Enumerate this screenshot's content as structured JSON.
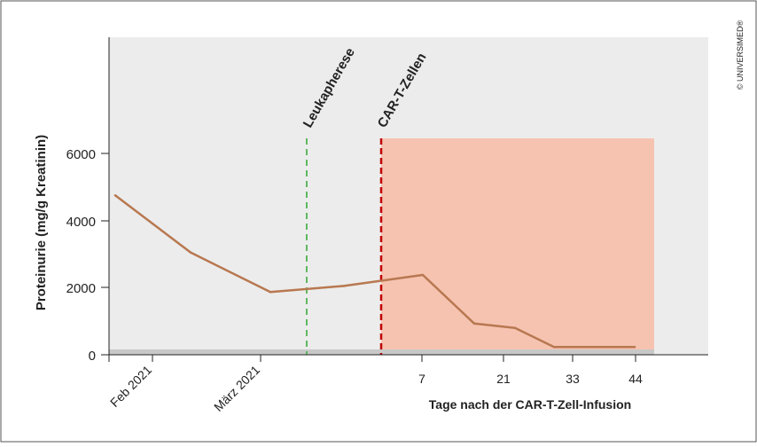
{
  "chart_data": {
    "type": "line",
    "ylabel": "Proteinurie (mg/g Kreatinin)",
    "xlabel": "Tage nach der CAR-T-Zell-Infusion",
    "ylim": [
      0,
      6500
    ],
    "yticks": [
      "0",
      "2000",
      "4000",
      "6000"
    ],
    "date_ticks": [
      "Feb 2021",
      "März 2021"
    ],
    "day_ticks": [
      "7",
      "21",
      "33",
      "44"
    ],
    "series": [
      {
        "values": [
          4750,
          3050,
          1870,
          2050,
          2380,
          930,
          800,
          230,
          230
        ]
      }
    ],
    "annotations": {
      "leukapherese": "Leukapherese",
      "car_t": "CAR-T-Zellen"
    },
    "grid": false,
    "colors": {
      "line": "#b87850",
      "plot_background": "#ececec",
      "treatment_region": "#f6c3b1",
      "leukapherese_line": "#5fb860",
      "car_t_line": "#c00000",
      "baseline_band": "#c8c8c8"
    }
  },
  "watermark": "© UNIVERSIMED®"
}
